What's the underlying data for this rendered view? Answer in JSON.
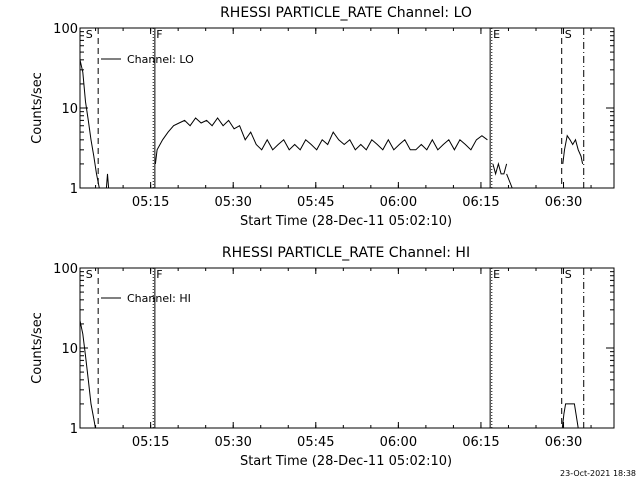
{
  "footer_timestamp": "23-Oct-2021 18:38",
  "chart_data": [
    {
      "type": "line",
      "title": "RHESSI PARTICLE_RATE Channel: LO",
      "xlabel": "Start Time (28-Dec-11 05:02:10)",
      "ylabel": "Counts/sec",
      "yscale": "log",
      "ylim": [
        1,
        100
      ],
      "xlim_minutes": [
        0,
        97
      ],
      "grid": false,
      "legend_position": "top-left",
      "x_ticks": [
        {
          "label": "05:15",
          "minutes": 12.83
        },
        {
          "label": "05:30",
          "minutes": 27.83
        },
        {
          "label": "05:45",
          "minutes": 42.83
        },
        {
          "label": "06:00",
          "minutes": 57.83
        },
        {
          "label": "06:15",
          "minutes": 72.83
        },
        {
          "label": "06:30",
          "minutes": 87.83
        }
      ],
      "y_ticks": [
        {
          "label": "1",
          "value": 1
        },
        {
          "label": "10",
          "value": 10
        },
        {
          "label": "100",
          "value": 100
        }
      ],
      "markers": [
        {
          "label": "S",
          "minutes": 0.5,
          "style": "dashed",
          "line": false
        },
        {
          "label": "",
          "minutes": 3.3,
          "style": "dashed",
          "line": true
        },
        {
          "label": "F",
          "minutes": 13.3,
          "style": "dotted",
          "line": true
        },
        {
          "label": "",
          "minutes": 13.6,
          "style": "solid",
          "line": true
        },
        {
          "label": "E",
          "minutes": 74.5,
          "style": "solid",
          "line": true
        },
        {
          "label": "",
          "minutes": 74.8,
          "style": "dotted",
          "line": true
        },
        {
          "label": "S",
          "minutes": 87.5,
          "style": "dashed",
          "line": true
        },
        {
          "label": "",
          "minutes": 91.5,
          "style": "dashdot",
          "line": true
        }
      ],
      "series": [
        {
          "name": "Channel: LO",
          "segments": [
            {
              "x": [
                0,
                0.5,
                1,
                1.5,
                2,
                2.5,
                3,
                3.5
              ],
              "y": [
                40,
                28,
                12,
                7,
                4,
                2.5,
                1.5,
                1
              ]
            },
            {
              "x": [
                4.8,
                5,
                5.2
              ],
              "y": [
                1,
                1.5,
                1
              ]
            },
            {
              "x": [
                13.7,
                14,
                15,
                16,
                17,
                18,
                19,
                20,
                21,
                22,
                23,
                24,
                25,
                26,
                27,
                28,
                29,
                30,
                31,
                32,
                33,
                34,
                35,
                36,
                37,
                38,
                39,
                40,
                41,
                42,
                43,
                44,
                45,
                46,
                47,
                48,
                49,
                50,
                51,
                52,
                53,
                54,
                55,
                56,
                57,
                58,
                59,
                60,
                61,
                62,
                63,
                64,
                65,
                66,
                67,
                68,
                69,
                70,
                71,
                72,
                73,
                74
              ],
              "y": [
                2,
                3,
                4,
                5,
                6,
                6.5,
                7,
                6,
                7.5,
                6.5,
                7,
                6,
                7.5,
                6,
                7,
                5.5,
                6,
                4,
                5,
                3.5,
                3,
                4,
                3,
                3.5,
                4,
                3,
                3.5,
                3,
                4,
                3.5,
                3,
                4,
                3.5,
                5,
                4,
                3.5,
                4,
                3,
                3.5,
                3,
                4,
                3.5,
                3,
                4,
                3,
                3.5,
                4,
                3,
                3,
                3.5,
                3,
                4,
                3,
                3.5,
                4,
                3,
                4,
                3.5,
                3,
                4,
                4.5,
                4
              ]
            },
            {
              "x": [
                75,
                75.5,
                76,
                76.5,
                77,
                77.5
              ],
              "y": [
                2,
                1.5,
                2,
                1.5,
                1.5,
                2
              ]
            },
            {
              "x": [
                77.5,
                78.5,
                79,
                79.5,
                80
              ],
              "y": [
                1.5,
                1,
                1,
                1,
                1
              ]
            },
            {
              "x": [
                87.7,
                88,
                88.5,
                89,
                89.5,
                90,
                90.5,
                91,
                91.3
              ],
              "y": [
                2,
                3,
                4.5,
                4,
                3.5,
                4,
                3,
                2.5,
                2
              ]
            }
          ]
        }
      ]
    },
    {
      "type": "line",
      "title": "RHESSI PARTICLE_RATE Channel: HI",
      "xlabel": "Start Time (28-Dec-11 05:02:10)",
      "ylabel": "Counts/sec",
      "yscale": "log",
      "ylim": [
        1,
        100
      ],
      "xlim_minutes": [
        0,
        97
      ],
      "grid": false,
      "legend_position": "top-left",
      "x_ticks": [
        {
          "label": "05:15",
          "minutes": 12.83
        },
        {
          "label": "05:30",
          "minutes": 27.83
        },
        {
          "label": "05:45",
          "minutes": 42.83
        },
        {
          "label": "06:00",
          "minutes": 57.83
        },
        {
          "label": "06:15",
          "minutes": 72.83
        },
        {
          "label": "06:30",
          "minutes": 87.83
        }
      ],
      "y_ticks": [
        {
          "label": "1",
          "value": 1
        },
        {
          "label": "10",
          "value": 10
        },
        {
          "label": "100",
          "value": 100
        }
      ],
      "markers": [
        {
          "label": "S",
          "minutes": 0.5,
          "style": "dashed",
          "line": false
        },
        {
          "label": "",
          "minutes": 3.3,
          "style": "dashed",
          "line": true
        },
        {
          "label": "F",
          "minutes": 13.3,
          "style": "dotted",
          "line": true
        },
        {
          "label": "",
          "minutes": 13.6,
          "style": "solid",
          "line": true
        },
        {
          "label": "E",
          "minutes": 74.5,
          "style": "solid",
          "line": true
        },
        {
          "label": "",
          "minutes": 74.8,
          "style": "dotted",
          "line": true
        },
        {
          "label": "S",
          "minutes": 87.5,
          "style": "dashed",
          "line": true
        },
        {
          "label": "",
          "minutes": 91.5,
          "style": "dashdot",
          "line": true
        }
      ],
      "series": [
        {
          "name": "Channel: HI",
          "segments": [
            {
              "x": [
                0,
                0.5,
                1,
                1.5,
                2,
                2.5,
                2.8
              ],
              "y": [
                22,
                15,
                8,
                4,
                2,
                1.3,
                1
              ]
            },
            {
              "x": [
                87.6,
                87.9,
                88.2,
                89.8,
                90.1,
                90.5
              ],
              "y": [
                1,
                1.5,
                2,
                2,
                1.5,
                1
              ]
            }
          ]
        }
      ]
    }
  ]
}
